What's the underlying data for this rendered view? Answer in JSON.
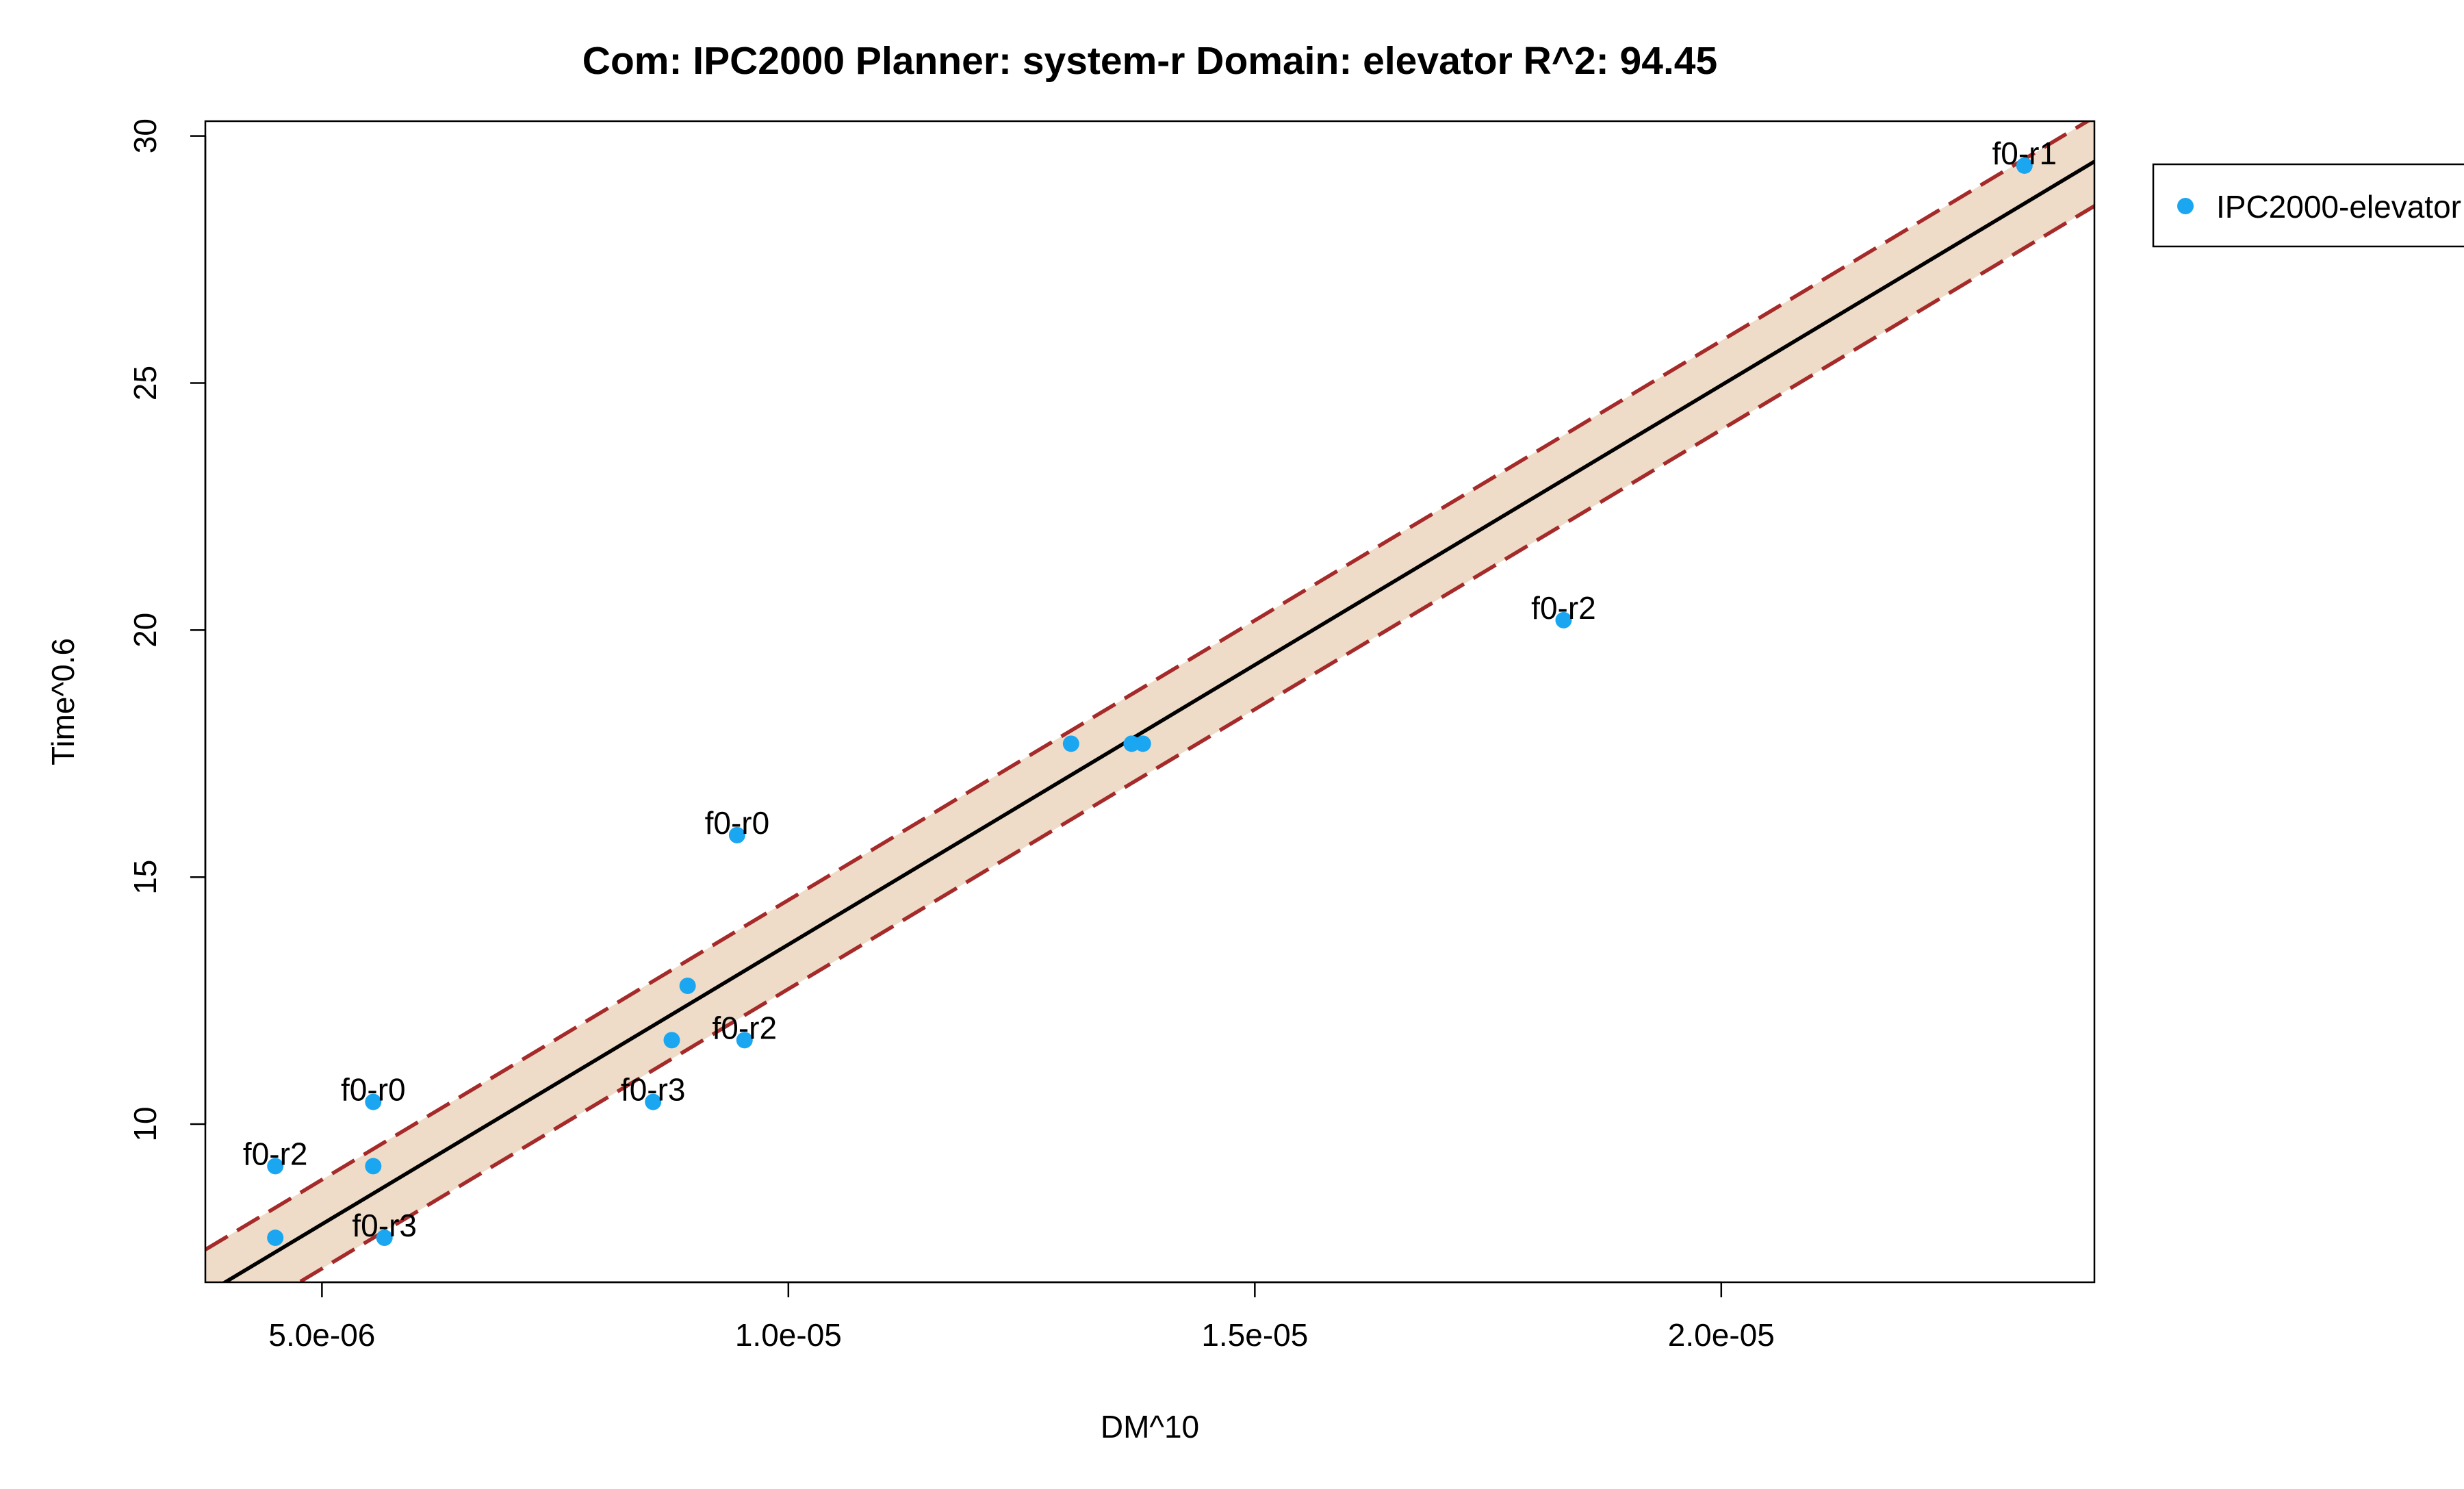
{
  "chart_data": {
    "type": "scatter",
    "title": "Com: IPC2000 Planner: system-r Domain: elevator R^2: 94.45",
    "xlabel": "DM^10",
    "ylabel": "Time^0.6",
    "xlim": [
      3.75e-06,
      2.4e-05
    ],
    "ylim": [
      6.8,
      30.3
    ],
    "x_ticks": [
      {
        "value": 5e-06,
        "label": "5.0e-06"
      },
      {
        "value": 1e-05,
        "label": "1.0e-05"
      },
      {
        "value": 1.5e-05,
        "label": "1.5e-05"
      },
      {
        "value": 2e-05,
        "label": "2.0e-05"
      }
    ],
    "y_ticks": [
      {
        "value": 10,
        "label": "10"
      },
      {
        "value": 15,
        "label": "15"
      },
      {
        "value": 20,
        "label": "20"
      },
      {
        "value": 25,
        "label": "25"
      },
      {
        "value": 30,
        "label": "30"
      }
    ],
    "series": [
      {
        "name": "IPC2000-elevator",
        "color": "#1aa6f0",
        "points": [
          {
            "x": 4.5e-06,
            "y": 9.15,
            "label": "f0-r2"
          },
          {
            "x": 4.5e-06,
            "y": 7.7,
            "label": ""
          },
          {
            "x": 5.55e-06,
            "y": 10.45,
            "label": "f0-r0"
          },
          {
            "x": 5.55e-06,
            "y": 9.15,
            "label": ""
          },
          {
            "x": 5.67e-06,
            "y": 7.7,
            "label": "f0-r3"
          },
          {
            "x": 8.55e-06,
            "y": 10.45,
            "label": "f0-r3"
          },
          {
            "x": 8.75e-06,
            "y": 11.7,
            "label": ""
          },
          {
            "x": 8.92e-06,
            "y": 12.8,
            "label": ""
          },
          {
            "x": 9.45e-06,
            "y": 15.85,
            "label": "f0-r0"
          },
          {
            "x": 9.53e-06,
            "y": 11.7,
            "label": "f0-r2"
          },
          {
            "x": 1.303e-05,
            "y": 17.7,
            "label": ""
          },
          {
            "x": 1.368e-05,
            "y": 17.7,
            "label": ""
          },
          {
            "x": 1.38e-05,
            "y": 17.7,
            "label": ""
          },
          {
            "x": 1.831e-05,
            "y": 20.2,
            "label": "f0-r2"
          },
          {
            "x": 2.325e-05,
            "y": 29.4,
            "label": "f0-r1"
          }
        ]
      }
    ],
    "fit": {
      "intercept": 2.315,
      "slope": 1132000,
      "band_halfwidth": 0.9,
      "line_color": "#000000",
      "band_color": "#a52a2a",
      "fill_color": "#eedcc8"
    },
    "legend": {
      "position": "top-right, outside plot",
      "entries": [
        "IPC2000-elevator"
      ]
    },
    "grid": false
  }
}
